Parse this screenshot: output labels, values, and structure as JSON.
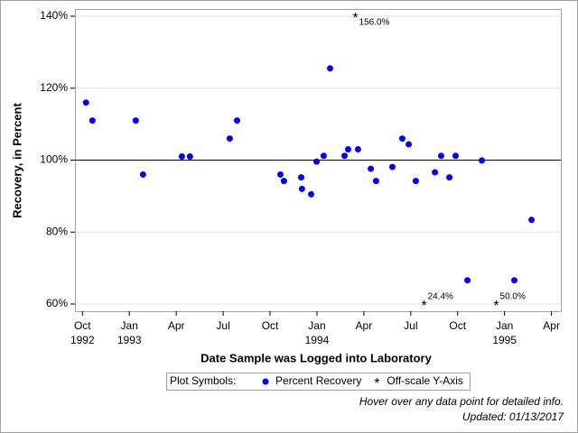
{
  "chart_data": {
    "type": "scatter",
    "x_label": "Date Sample was Logged into Laboratory",
    "y_label": "Recovery, in Percent",
    "xlim": [
      1992.71,
      1995.3
    ],
    "ylim": [
      58,
      142
    ],
    "xticks": [
      {
        "value": 1992.75,
        "label": "Oct 1992"
      },
      {
        "value": 1993.0,
        "label": "Jan 1993"
      },
      {
        "value": 1993.25,
        "label": "Apr"
      },
      {
        "value": 1993.5,
        "label": "Jul"
      },
      {
        "value": 1993.75,
        "label": "Oct"
      },
      {
        "value": 1994.0,
        "label": "Jan 1994"
      },
      {
        "value": 1994.25,
        "label": "Apr"
      },
      {
        "value": 1994.5,
        "label": "Jul"
      },
      {
        "value": 1994.75,
        "label": "Oct"
      },
      {
        "value": 1995.0,
        "label": "Jan 1995"
      },
      {
        "value": 1995.25,
        "label": "Apr"
      }
    ],
    "yticks": [
      {
        "value": 60,
        "label": "60%"
      },
      {
        "value": 80,
        "label": "80%"
      },
      {
        "value": 100,
        "label": "100%"
      },
      {
        "value": 120,
        "label": "120%"
      },
      {
        "value": 140,
        "label": "140%"
      }
    ],
    "grid": true,
    "reference_line": 100,
    "series": [
      {
        "name": "Percent Recovery",
        "color": "#0000ff",
        "marker": "circle",
        "x": [
          1992.769,
          1992.803,
          1993.034,
          1993.073,
          1993.28,
          1993.323,
          1993.535,
          1993.574,
          1993.805,
          1993.824,
          1993.916,
          1993.92,
          1993.969,
          1993.998,
          1994.036,
          1994.07,
          1994.147,
          1994.166,
          1994.219,
          1994.287,
          1994.315,
          1994.402,
          1994.455,
          1994.489,
          1994.527,
          1994.629,
          1994.662,
          1994.706,
          1994.739,
          1994.802,
          1994.879,
          1995.052,
          1995.144
        ],
        "values": [
          116,
          111,
          111,
          96,
          101,
          101,
          106,
          111,
          96,
          94.2,
          95.2,
          92,
          90.5,
          99.6,
          101.2,
          125.5,
          101.2,
          103,
          103,
          97.6,
          94.2,
          98.1,
          106,
          104.4,
          94.2,
          96.6,
          101.2,
          95.2,
          101.2,
          66.6,
          99.9,
          66.6,
          83.4
        ]
      },
      {
        "name": "Off-scale Y-Axis",
        "color": "#ff0000",
        "marker": "star",
        "x": [
          1994.205,
          1994.571,
          1994.956
        ],
        "values": [
          140,
          60,
          60
        ],
        "annotations": [
          "156.0%",
          "24.4%",
          "50.0%"
        ]
      }
    ],
    "legend_title": "Plot Symbols:",
    "footnotes": [
      "Hover over any data point for detailed info.",
      "Updated: 01/13/2017"
    ]
  }
}
